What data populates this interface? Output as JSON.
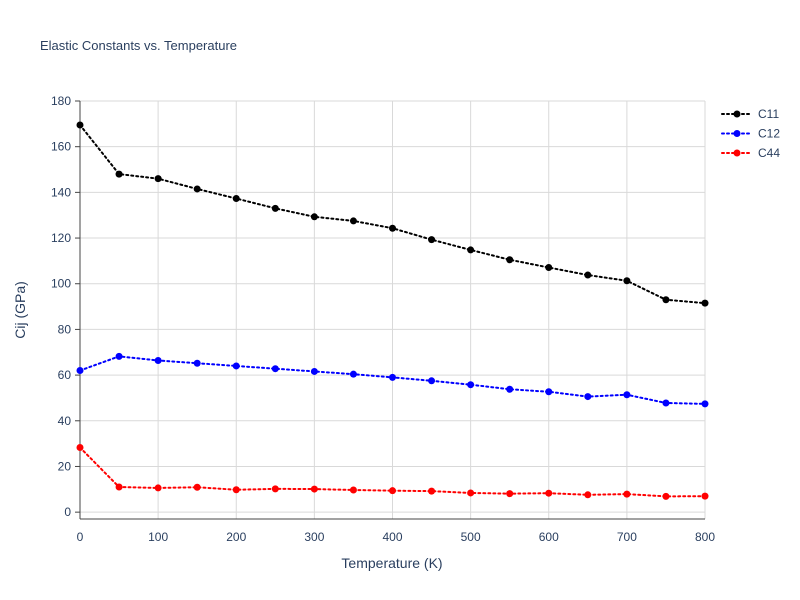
{
  "chart_data": {
    "type": "line",
    "title": "Elastic Constants vs. Temperature",
    "xlabel": "Temperature (K)",
    "ylabel": "Cij (GPa)",
    "xlim": [
      0,
      800
    ],
    "ylim": [
      -3,
      180
    ],
    "x_ticks": [
      0,
      100,
      200,
      300,
      400,
      500,
      600,
      700,
      800
    ],
    "y_ticks": [
      0,
      20,
      40,
      60,
      80,
      100,
      120,
      140,
      160,
      180
    ],
    "grid": true,
    "legend_position": "top-right",
    "line_style": "dotted",
    "x": [
      0,
      50,
      100,
      150,
      200,
      250,
      300,
      350,
      400,
      450,
      500,
      550,
      600,
      650,
      700,
      750,
      800
    ],
    "series": [
      {
        "name": "C11",
        "color": "#000000",
        "values": [
          169.5,
          148,
          146,
          141.5,
          137.3,
          133,
          129.3,
          127.5,
          124.3,
          119.3,
          114.8,
          110.5,
          107.1,
          103.8,
          101.3,
          93,
          91.5
        ]
      },
      {
        "name": "C12",
        "color": "#0000ff",
        "values": [
          62,
          68.2,
          66.4,
          65.2,
          64,
          62.8,
          61.6,
          60.4,
          59,
          57.5,
          55.8,
          53.8,
          52.7,
          50.6,
          51.4,
          47.8,
          47.4
        ]
      },
      {
        "name": "C44",
        "color": "#ff0000",
        "values": [
          28.3,
          11,
          10.6,
          10.9,
          9.8,
          10.2,
          10.1,
          9.7,
          9.4,
          9.2,
          8.4,
          8.1,
          8.3,
          7.6,
          7.9,
          6.9,
          7
        ]
      }
    ]
  }
}
